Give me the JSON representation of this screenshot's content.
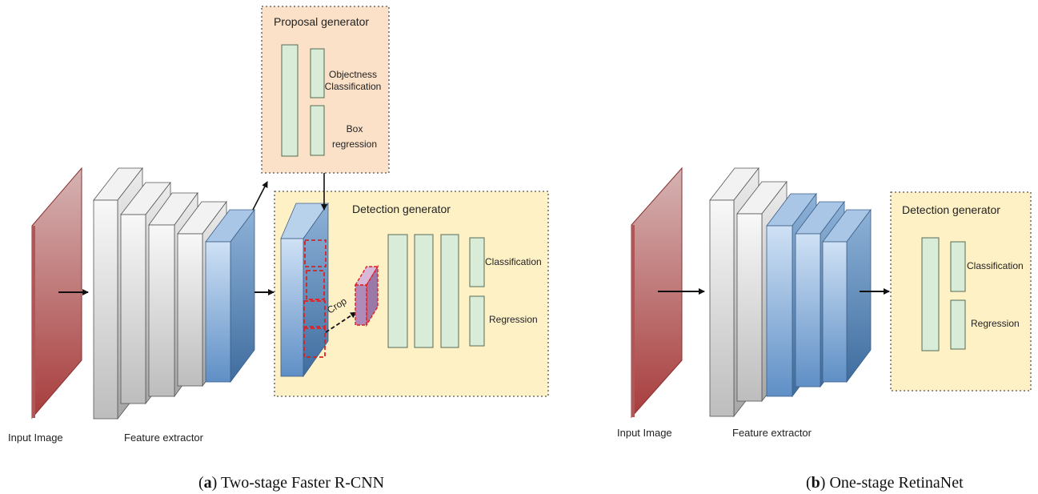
{
  "colors": {
    "input_image": "#a84848",
    "gray_layer": "#d8d8d8",
    "blue_layer": "#6f98c8",
    "green_block": "#d8ecd8",
    "green_stroke": "#556b55",
    "proposal_bg": "#fbe1c8",
    "detection_bg": "#fff1c6",
    "crop_dash": "#e02020",
    "crop_fill": "#b08ab8"
  },
  "left": {
    "input_label": "Input Image",
    "extractor_label": "Feature extractor",
    "proposal_title": "Proposal generator",
    "objectness_line1": "Objectness",
    "objectness_line2": "Classification",
    "box_line1": "Box",
    "box_line2": "regression",
    "detection_title": "Detection generator",
    "classification": "Classification",
    "regression": "Regression",
    "crop": "Crop",
    "caption_letter": "a",
    "caption_text": " Two-stage Faster R-CNN"
  },
  "right": {
    "input_label": "Input Image",
    "extractor_label": "Feature extractor",
    "detection_title": "Detection generator",
    "classification": "Classification",
    "regression": "Regression",
    "caption_letter": "b",
    "caption_text": " One-stage RetinaNet"
  }
}
